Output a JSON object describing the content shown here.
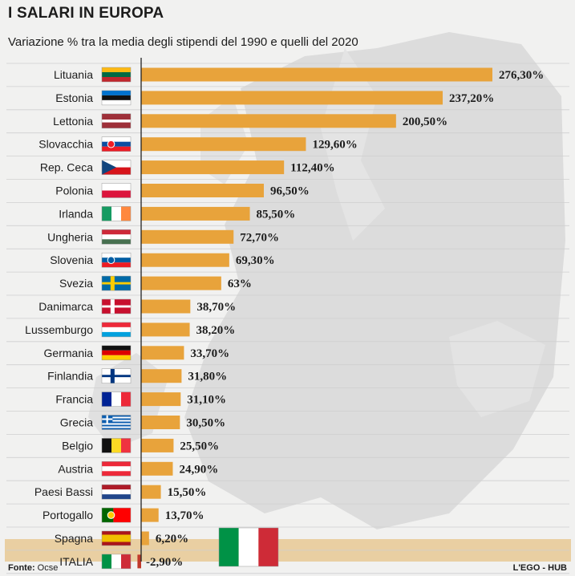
{
  "header": {
    "title": "I SALARI IN EUROPA",
    "subtitle": "Variazione % tra la media degli stipendi del 1990 e quelli del  2020"
  },
  "footer": {
    "source_label": "Fonte:",
    "source_value": "Ocse",
    "credit": "L'EGO - HUB"
  },
  "colors": {
    "bar": "#e8a33b",
    "italia_band": "#e9cfa2",
    "text": "#1c1c1c"
  },
  "chart_data": {
    "type": "bar",
    "orientation": "horizontal",
    "title": "I SALARI IN EUROPA",
    "subtitle": "Variazione % tra la media degli stipendi del 1990 e quelli del  2020",
    "categories": [
      "Lituania",
      "Estonia",
      "Lettonia",
      "Slovacchia",
      "Rep. Ceca",
      "Polonia",
      "Irlanda",
      "Ungheria",
      "Slovenia",
      "Svezia",
      "Danimarca",
      "Lussemburgo",
      "Germania",
      "Finlandia",
      "Francia",
      "Grecia",
      "Belgio",
      "Austria",
      "Paesi Bassi",
      "Portogallo",
      "Spagna",
      "ITALIA"
    ],
    "values": [
      276.3,
      237.2,
      200.5,
      129.6,
      112.4,
      96.5,
      85.5,
      72.7,
      69.3,
      63,
      38.7,
      38.2,
      33.7,
      31.8,
      31.1,
      30.5,
      25.5,
      24.9,
      15.5,
      13.7,
      6.2,
      -2.9
    ],
    "value_labels": [
      "276,30%",
      "237,20%",
      "200,50%",
      "129,60%",
      "112,40%",
      "96,50%",
      "85,50%",
      "72,70%",
      "69,30%",
      "63%",
      "38,70%",
      "38,20%",
      "33,70%",
      "31,80%",
      "31,10%",
      "30,50%",
      "25,50%",
      "24,90%",
      "15,50%",
      "13,70%",
      "6,20%",
      "-2,90%"
    ],
    "flags": [
      "flag-lithuania",
      "flag-estonia",
      "flag-latvia",
      "flag-slovakia",
      "flag-czech-republic",
      "flag-poland",
      "flag-ireland",
      "flag-hungary",
      "flag-slovenia",
      "flag-sweden",
      "flag-denmark",
      "flag-luxembourg",
      "flag-germany",
      "flag-finland",
      "flag-france",
      "flag-greece",
      "flag-belgium",
      "flag-austria",
      "flag-netherlands",
      "flag-portugal",
      "flag-spain",
      "flag-italy"
    ],
    "highlight": "ITALIA",
    "xlabel": "",
    "ylabel": "",
    "grid": true,
    "bar_color": "#e8a33b"
  }
}
